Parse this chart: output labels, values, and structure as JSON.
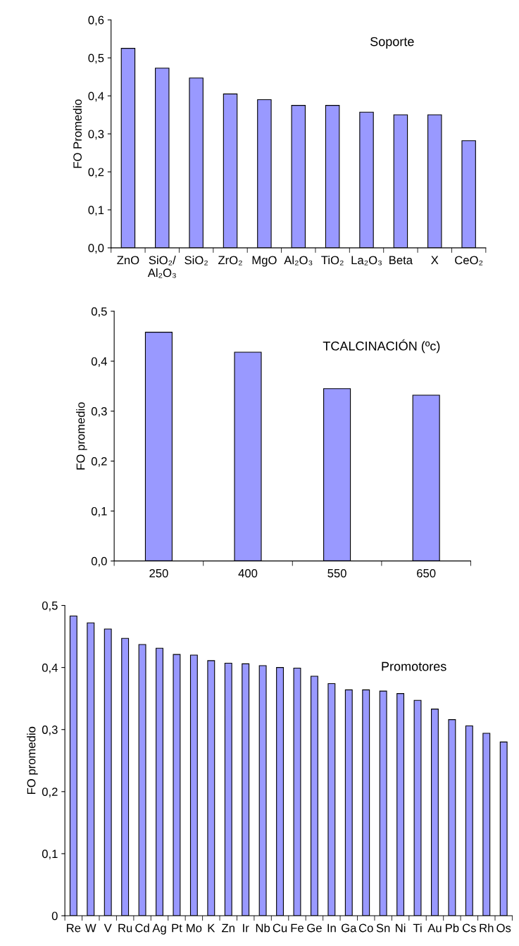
{
  "chart_data": [
    {
      "type": "bar",
      "title": "Soporte",
      "ylabel": "FO Promedio",
      "categories": [
        "ZnO",
        "SiO₂/\nAl₂O₃",
        "SiO₂",
        "ZrO₂",
        "MgO",
        "Al₂O₃",
        "TiO₂",
        "La₂O₃",
        "Beta",
        "X",
        "CeO₂"
      ],
      "values": [
        0.525,
        0.473,
        0.447,
        0.405,
        0.39,
        0.375,
        0.375,
        0.357,
        0.35,
        0.35,
        0.282
      ],
      "color": "#9999ff",
      "ylim": [
        0,
        0.6
      ],
      "yticks": [
        {
          "value": 0,
          "label": "0,0"
        },
        {
          "value": 0.1,
          "label": "0,1"
        },
        {
          "value": 0.2,
          "label": "0,2"
        },
        {
          "value": 0.3,
          "label": "0,3"
        },
        {
          "value": 0.4,
          "label": "0,4"
        },
        {
          "value": 0.5,
          "label": "0,5"
        },
        {
          "value": 0.6,
          "label": "0,6"
        }
      ]
    },
    {
      "type": "bar",
      "title": "TCALCINACIÓN (ºc)",
      "ylabel": "FO promedio",
      "categories": [
        "250",
        "400",
        "550",
        "650"
      ],
      "values": [
        0.458,
        0.418,
        0.345,
        0.332
      ],
      "color": "#9999ff",
      "ylim": [
        0,
        0.5
      ],
      "yticks": [
        {
          "value": 0,
          "label": "0,0"
        },
        {
          "value": 0.1,
          "label": "0,1"
        },
        {
          "value": 0.2,
          "label": "0,2"
        },
        {
          "value": 0.3,
          "label": "0,3"
        },
        {
          "value": 0.4,
          "label": "0,4"
        },
        {
          "value": 0.5,
          "label": "0,5"
        }
      ]
    },
    {
      "type": "bar",
      "title": "Promotores",
      "ylabel": "FO promedio",
      "categories": [
        "Re",
        "W",
        "V",
        "Ru",
        "Cd",
        "Ag",
        "Pt",
        "Mo",
        "K",
        "Zn",
        "Ir",
        "Nb",
        "Cu",
        "Fe",
        "Ge",
        "In",
        "Ga",
        "Co",
        "Sn",
        "Ni",
        "Ti",
        "Au",
        "Pb",
        "Cs",
        "Rh",
        "Os"
      ],
      "values": [
        0.483,
        0.472,
        0.462,
        0.447,
        0.437,
        0.431,
        0.421,
        0.42,
        0.411,
        0.407,
        0.406,
        0.403,
        0.4,
        0.399,
        0.386,
        0.374,
        0.364,
        0.364,
        0.362,
        0.358,
        0.347,
        0.333,
        0.316,
        0.306,
        0.294,
        0.28
      ],
      "color": "#9999ff",
      "ylim": [
        0,
        0.5
      ],
      "yticks": [
        0,
        {
          "value": 0.1,
          "label": "0,1"
        },
        {
          "value": 0.2,
          "label": "0,2"
        },
        {
          "value": 0.3,
          "label": "0,3"
        },
        {
          "value": 0.4,
          "label": "0,4"
        },
        {
          "value": 0.5,
          "label": "0,5"
        }
      ]
    }
  ]
}
